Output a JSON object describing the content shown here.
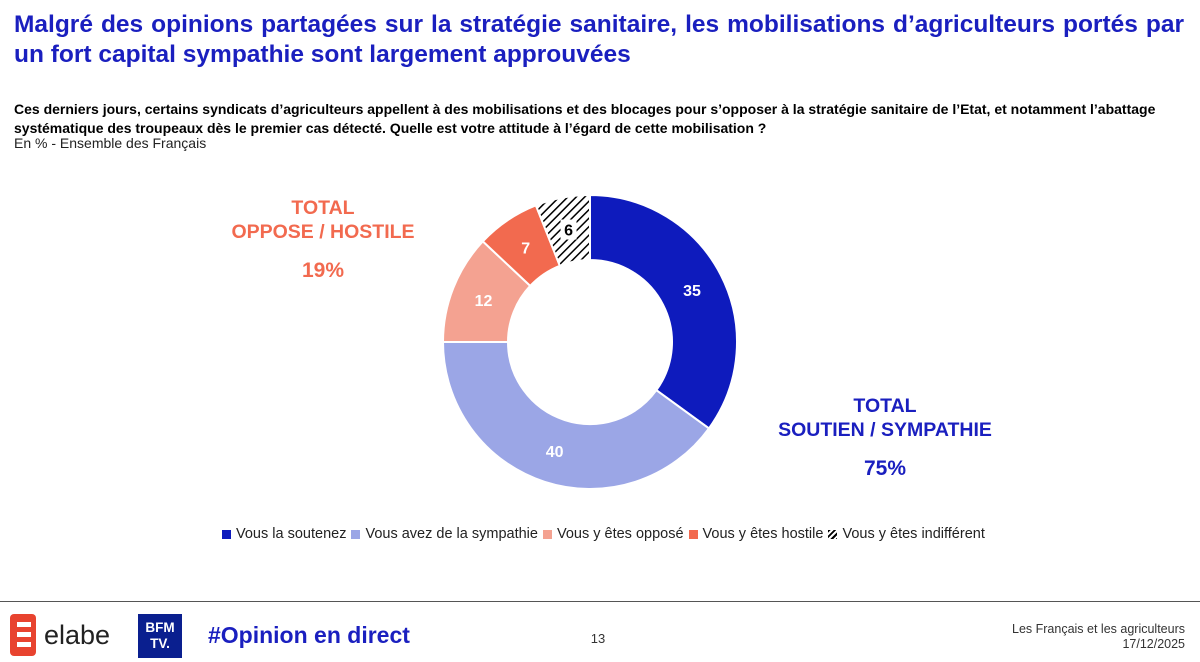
{
  "title": "Malgré des opinions partagées sur la stratégie sanitaire, les mobilisations d’agriculteurs portés par un fort capital sympathie sont largement approuvées",
  "question": "Ces derniers jours, certains syndicats d’agriculteurs appellent à des mobilisations et des blocages pour s’opposer à la stratégie sanitaire de l’Etat, et notamment l’abattage systématique des troupeaux dès le premier cas détecté. Quelle est votre attitude à l’égard de cette mobilisation ?",
  "subtitle": "En % - Ensemble des Français",
  "totals": {
    "oppose": {
      "line1": "TOTAL",
      "line2": "OPPOSE / HOSTILE",
      "value": "19%"
    },
    "support": {
      "line1": "TOTAL",
      "line2": "SOUTIEN / SYMPATHIE",
      "value": "75%"
    }
  },
  "chart_data": {
    "type": "pie",
    "variant": "donut",
    "title": "",
    "slices": [
      {
        "label": "Vous la soutenez",
        "value": 35,
        "color": "#0e1bbd",
        "label_color": "#ffffff"
      },
      {
        "label": "Vous avez de la sympathie",
        "value": 40,
        "color": "#9ba6e6",
        "label_color": "#ffffff"
      },
      {
        "label": "Vous y êtes opposé",
        "value": 12,
        "color": "#f4a291",
        "label_color": "#ffffff"
      },
      {
        "label": "Vous y êtes hostile",
        "value": 7,
        "color": "#f26a4f",
        "label_color": "#ffffff"
      },
      {
        "label": "Vous y êtes indifférent",
        "value": 6,
        "color": "hatch",
        "label_color": "#000000"
      }
    ],
    "legend_position": "bottom"
  },
  "footer": {
    "brand": "elabe",
    "partner_line1": "BFM",
    "partner_line2": "TV.",
    "hashtag": "#Opinion en direct",
    "page": "13",
    "study": "Les Français et les agriculteurs",
    "date": "17/12/2025"
  }
}
